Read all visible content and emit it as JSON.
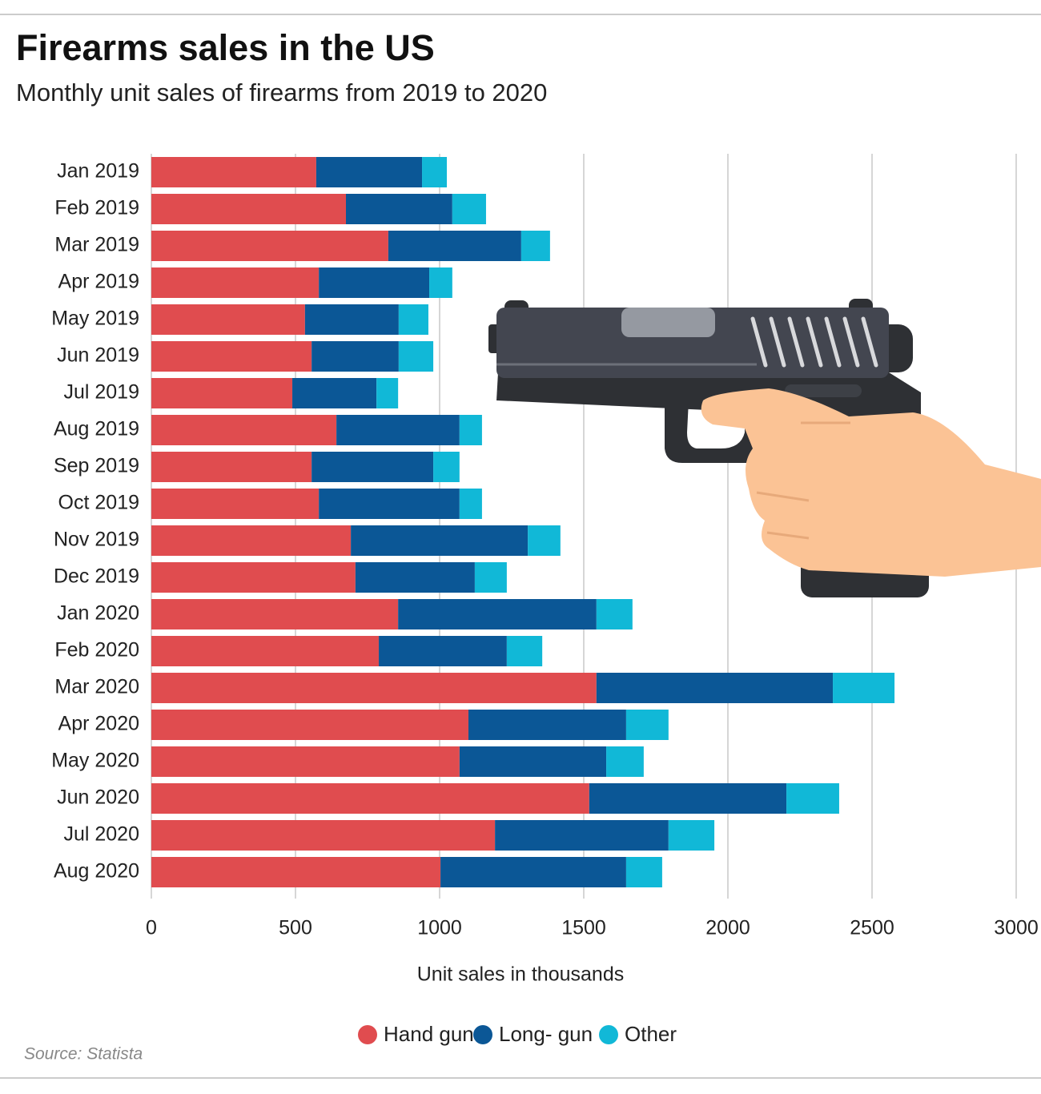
{
  "chart_data": {
    "type": "stacked-bar-horizontal",
    "title": "Firearms sales in the US",
    "subtitle": "Monthly unit sales of firearms from 2019 to 2020",
    "x_label": "Unit sales in thousands",
    "source": "Source: Statista",
    "categories": [
      "Jan 2019",
      "Feb 2019",
      "Mar 2019",
      "Apr 2019",
      "May 2019",
      "Jun 2019",
      "Jul 2019",
      "Aug 2019",
      "Sep 2019",
      "Oct 2019",
      "Nov 2019",
      "Dec 2019",
      "Jan 2020",
      "Feb 2020",
      "Mar 2020",
      "Apr 2020",
      "May 2020",
      "Jun 2020",
      "Jul 2020",
      "Aug 2020"
    ],
    "series": [
      {
        "name": "Hand gun",
        "color": "#e04c4f",
        "values": [
          572,
          675,
          822,
          581,
          533,
          556,
          489,
          642,
          556,
          581,
          692,
          708,
          856,
          789,
          1544,
          1100,
          1069,
          1519,
          1192,
          1003
        ]
      },
      {
        "name": "Long- gun",
        "color": "#0b5796",
        "values": [
          367,
          369,
          461,
          383,
          325,
          302,
          292,
          427,
          422,
          488,
          614,
          414,
          688,
          444,
          820,
          547,
          509,
          684,
          602,
          644
        ]
      },
      {
        "name": "Other",
        "color": "#11b8d7",
        "values": [
          86,
          117,
          100,
          80,
          103,
          120,
          75,
          78,
          91,
          78,
          113,
          111,
          125,
          123,
          214,
          147,
          130,
          183,
          159,
          125
        ]
      }
    ],
    "xlim": [
      0,
      3000
    ],
    "xticks": [
      0,
      500,
      1000,
      1500,
      2000,
      2500,
      3000
    ],
    "grid": true,
    "legend": "bottom"
  }
}
